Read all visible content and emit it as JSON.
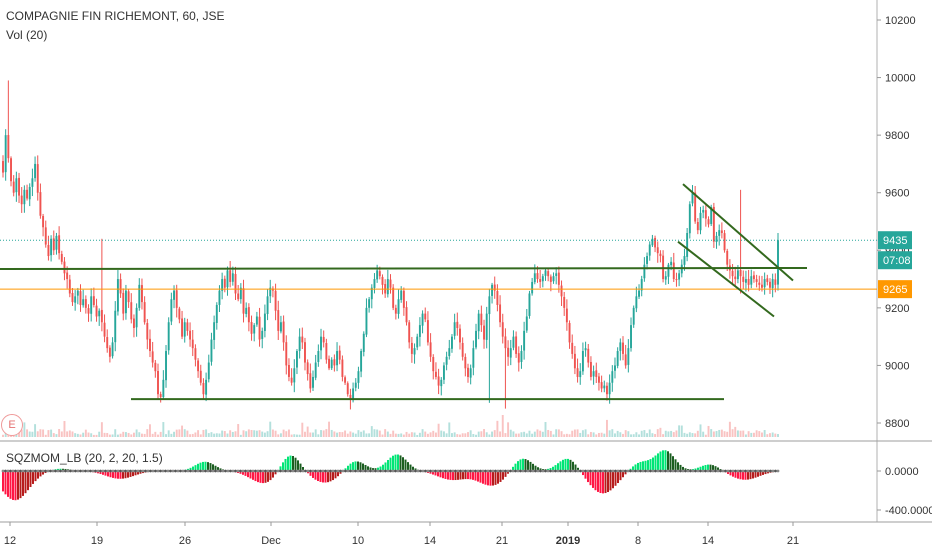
{
  "header": {
    "title": "COMPAGNIE FIN RICHEMONT, 60, JSE",
    "volume_label": "Vol (20)",
    "indicator_label": "SQZMOM_LB (20, 2, 20, 1.5)",
    "events_badge": "E"
  },
  "colors": {
    "up": "#26a69a",
    "down": "#ef5350",
    "trendline": "#33691e",
    "orange_line": "#ff9800",
    "last_price_badge": "#26a69a",
    "mom_up_strong": "#00e676",
    "mom_up_weak": "#1b5e20",
    "mom_down_strong": "#ff1744",
    "mom_down_weak": "#b71c1c"
  },
  "price_badges": {
    "last_price": "9435",
    "countdown": "07:08",
    "orange_level": "9265"
  },
  "chart_data": [
    {
      "type": "candlestick",
      "title": "COMPAGNIE FIN RICHEMONT, 60, JSE",
      "x_ticks": [
        "12",
        "19",
        "26",
        "Dec",
        "10",
        "14",
        "21",
        "2019",
        "8",
        "14",
        "21"
      ],
      "y_ticks": [
        "10200",
        "10000",
        "9800",
        "9600",
        "9400",
        "9200",
        "9000",
        "8800"
      ],
      "ylim": [
        8740,
        10260
      ],
      "last_price": 9435,
      "horizontal_levels": [
        {
          "name": "resistance",
          "value": 9335
        },
        {
          "name": "support",
          "value": 8883
        },
        {
          "name": "orange",
          "value": 9265
        }
      ],
      "channel": {
        "upper": [
          {
            "x": 683,
            "y": 9630
          },
          {
            "x": 793,
            "y": 9295
          }
        ],
        "lower": [
          {
            "x": 678,
            "y": 9430
          },
          {
            "x": 774,
            "y": 9170
          }
        ]
      },
      "series_x_range": [
        3,
        778
      ],
      "closes": [
        9670,
        9800,
        9720,
        9640,
        9600,
        9650,
        9590,
        9560,
        9610,
        9580,
        9620,
        9650,
        9700,
        9600,
        9520,
        9480,
        9420,
        9380,
        9440,
        9400,
        9450,
        9390,
        9360,
        9320,
        9300,
        9250,
        9220,
        9240,
        9260,
        9210,
        9230,
        9200,
        9180,
        9240,
        9210,
        9170,
        9190,
        9150,
        9100,
        9060,
        9030,
        9080,
        9190,
        9300,
        9250,
        9180,
        9260,
        9220,
        9160,
        9130,
        9200,
        9280,
        9220,
        9150,
        9090,
        9050,
        9010,
        8980,
        8900,
        8890,
        8950,
        9050,
        9150,
        9230,
        9260,
        9200,
        9160,
        9100,
        9150,
        9120,
        9090,
        9060,
        9020,
        8980,
        8940,
        8900,
        8950,
        9010,
        9090,
        9150,
        9210,
        9260,
        9300,
        9270,
        9330,
        9290,
        9320,
        9250,
        9230,
        9270,
        9180,
        9200,
        9150,
        9110,
        9140,
        9170,
        9090,
        9120,
        9180,
        9240,
        9270,
        9260,
        9190,
        9120,
        9150,
        9080,
        9000,
        8960,
        8940,
        8990,
        9050,
        9100,
        9080,
        9010,
        8970,
        8920,
        8960,
        9010,
        9050,
        9100,
        9080,
        9020,
        8990,
        9020,
        9000,
        9050,
        9020,
        8960,
        8940,
        8900,
        8880,
        8920,
        8940,
        8980,
        9050,
        9110,
        9200,
        9230,
        9270,
        9300,
        9330,
        9310,
        9280,
        9250,
        9300,
        9270,
        9200,
        9180,
        9230,
        9260,
        9200,
        9150,
        9080,
        9040,
        9060,
        9100,
        9140,
        9180,
        9160,
        9080,
        9030,
        8980,
        8960,
        8930,
        8950,
        9000,
        9030,
        9060,
        9100,
        9150,
        9130,
        9080,
        9030,
        8990,
        8960,
        8990,
        9060,
        9120,
        9180,
        9140,
        9090,
        9180,
        9240,
        9280,
        9260,
        9210,
        9150,
        9100,
        9060,
        9030,
        9060,
        9100,
        9040,
        9010,
        9050,
        9120,
        9170,
        9250,
        9290,
        9320,
        9300,
        9290,
        9310,
        9330,
        9310,
        9290,
        9310,
        9320,
        9280,
        9240,
        9200,
        9150,
        9080,
        9040,
        8990,
        8960,
        8980,
        9050,
        9060,
        9010,
        8960,
        8980,
        8960,
        8940,
        8920,
        8930,
        8900,
        8940,
        8980,
        9000,
        9050,
        9080,
        9040,
        9000,
        9060,
        9140,
        9200,
        9240,
        9260,
        9300,
        9350,
        9380,
        9420,
        9440,
        9410,
        9390,
        9380,
        9300,
        9310,
        9350,
        9360,
        9300,
        9300,
        9320,
        9350,
        9380,
        9460,
        9560,
        9600,
        9500,
        9470,
        9530,
        9540,
        9510,
        9490,
        9550,
        9430,
        9450,
        9470,
        9460,
        9400,
        9350,
        9330,
        9310,
        9300,
        9330,
        9310,
        9290,
        9300,
        9280,
        9310,
        9300,
        9290,
        9280,
        9270,
        9300,
        9290,
        9270,
        9300,
        9280,
        9435
      ]
    },
    {
      "type": "bar",
      "title": "Vol (20)",
      "note": "volume histogram overlaid at bottom of price pane"
    },
    {
      "type": "bar",
      "title": "SQZMOM_LB (20, 2, 20, 1.5)",
      "y_ticks": [
        "0.0000",
        "-400.0000"
      ],
      "ylim": [
        -560,
        240
      ],
      "positive_humps": [
        {
          "center": 60,
          "peak": 25
        },
        {
          "center": 205,
          "peak": 95
        },
        {
          "center": 290,
          "peak": 190
        },
        {
          "center": 355,
          "peak": 110
        },
        {
          "center": 397,
          "peak": 170
        },
        {
          "center": 522,
          "peak": 140
        },
        {
          "center": 568,
          "peak": 135
        },
        {
          "center": 640,
          "peak": 90
        },
        {
          "center": 665,
          "peak": 210
        },
        {
          "center": 710,
          "peak": 70
        }
      ],
      "negative_humps": [
        {
          "center": 15,
          "peak": -300
        },
        {
          "center": 120,
          "peak": -80
        },
        {
          "center": 265,
          "peak": -130
        },
        {
          "center": 325,
          "peak": -120
        },
        {
          "center": 452,
          "peak": -90
        },
        {
          "center": 492,
          "peak": -150
        },
        {
          "center": 603,
          "peak": -230
        },
        {
          "center": 745,
          "peak": -90
        }
      ]
    }
  ]
}
